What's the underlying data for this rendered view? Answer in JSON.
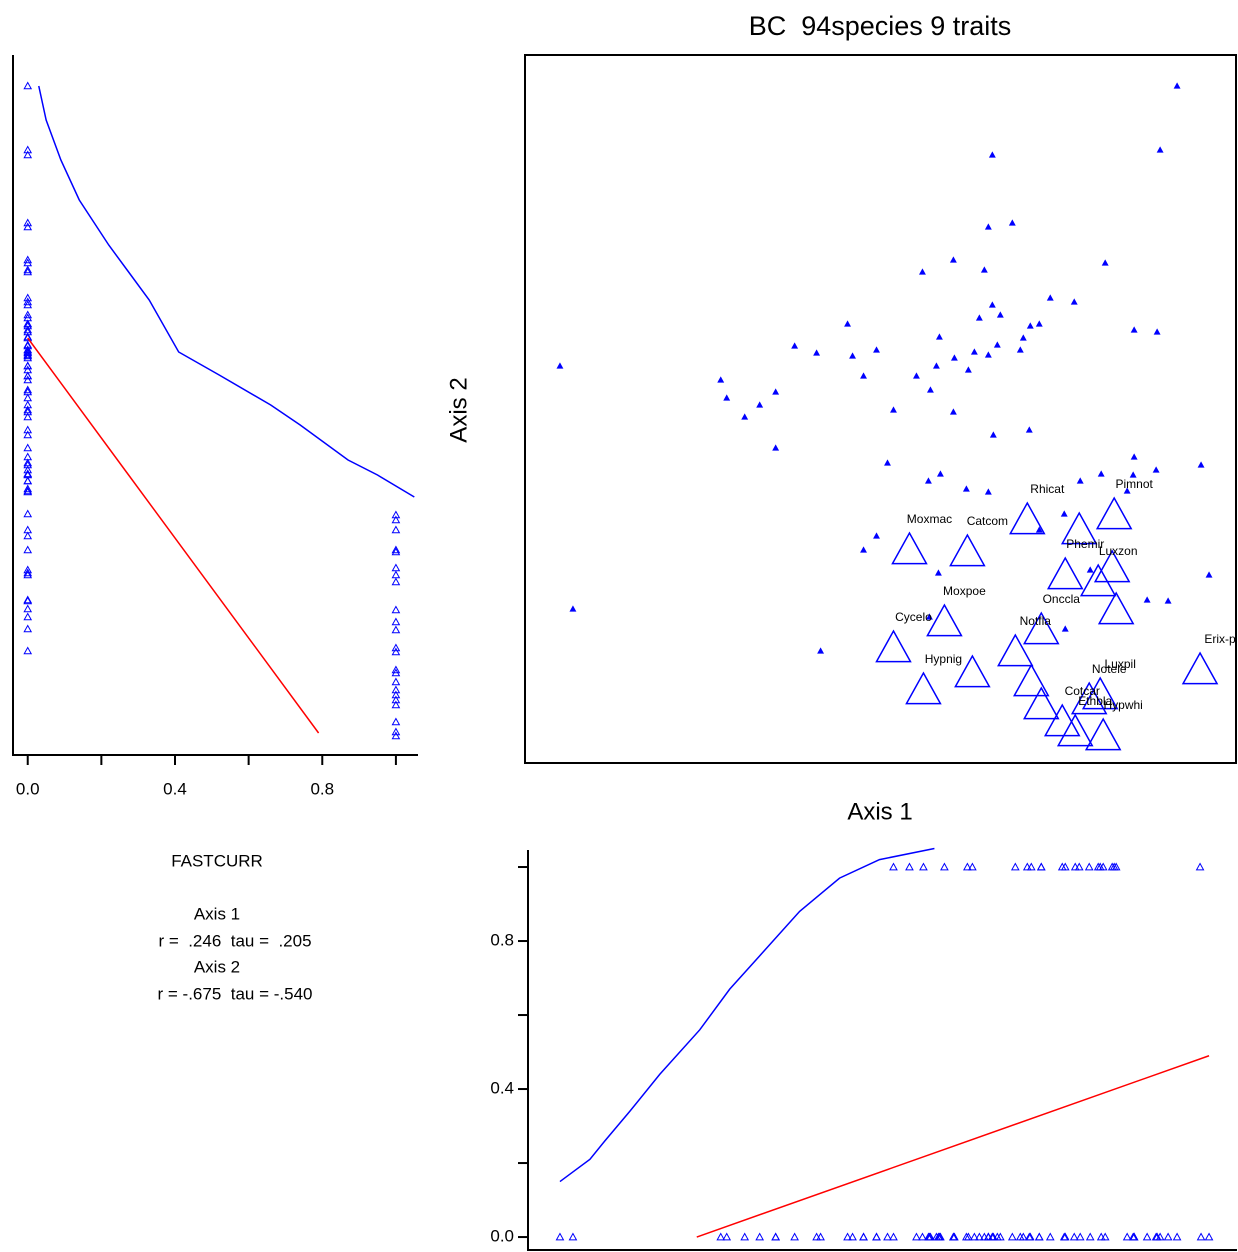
{
  "chart_data": [
    {
      "type": "ordination",
      "title": "BC  94species 9 traits",
      "x_label": "Axis 1",
      "y_label": "Axis 2",
      "xlim": [
        0,
        713
      ],
      "ylim": [
        0,
        708
      ],
      "color": "#0000ff",
      "points": {
        "labels": [
          null,
          null,
          null,
          null,
          null,
          null,
          null,
          null,
          null,
          null,
          null,
          null,
          null,
          null,
          null,
          null,
          null,
          null,
          null,
          null,
          null,
          null,
          null,
          null,
          null,
          null,
          null,
          null,
          null,
          null,
          null,
          null,
          null,
          null,
          null,
          null,
          null,
          null,
          null,
          null,
          null,
          null,
          null,
          null,
          null,
          null,
          null,
          null,
          null,
          null,
          null,
          null,
          null,
          null,
          null,
          null,
          null,
          null,
          null,
          null,
          null,
          null,
          null,
          null,
          null,
          null,
          null,
          null,
          null,
          null,
          null,
          "Moxmac",
          "Catcom",
          "Rhicat",
          "Pimnot",
          null,
          "Phemir",
          null,
          "Luxzon",
          null,
          "Moxpoe",
          "Cycelo",
          "Onccla",
          "Notfla",
          null,
          "Hypnig",
          null,
          "Notele",
          "Luxpil",
          "Cotcar",
          "Ethbla",
          "Hypwhi",
          "Erix-p",
          null
        ],
        "axis1": [
          653,
          636,
          468,
          488,
          464,
          429,
          460,
          398,
          581,
          468,
          526,
          550,
          455,
          476,
          323,
          506,
          610,
          633,
          515,
          415,
          270,
          292,
          328,
          352,
          499,
          496,
          473,
          450,
          430,
          464,
          339,
          196,
          392,
          412,
          444,
          202,
          251,
          235,
          220,
          406,
          369,
          429,
          251,
          469,
          505,
          363,
          610,
          632,
          677,
          609,
          404,
          416,
          442,
          464,
          556,
          577,
          603,
          540,
          515,
          352,
          339,
          414,
          566,
          541,
          623,
          644,
          685,
          405,
          296,
          35,
          48,
          385,
          443,
          503,
          590,
          555,
          541,
          588,
          574,
          592,
          420,
          369,
          517,
          491,
          507,
          399,
          448,
          565,
          576,
          538,
          551,
          579,
          676,
          517
        ],
        "axis2": [
          677,
          613,
          608,
          540,
          536,
          503,
          493,
          491,
          500,
          458,
          465,
          461,
          445,
          448,
          439,
          437,
          433,
          431,
          439,
          426,
          417,
          410,
          407,
          413,
          425,
          413,
          418,
          411,
          405,
          408,
          387,
          383,
          387,
          397,
          393,
          365,
          371,
          358,
          346,
          373,
          353,
          351,
          315,
          328,
          333,
          300,
          306,
          293,
          298,
          288,
          282,
          289,
          274,
          271,
          282,
          289,
          272,
          249,
          233,
          227,
          213,
          190,
          193,
          134,
          163,
          162,
          188,
          146,
          112,
          397,
          154,
          213,
          211,
          243,
          248,
          233,
          188,
          195,
          181,
          153,
          141,
          115,
          133,
          111,
          81,
          73,
          90,
          63,
          68,
          41,
          31,
          27,
          93,
          58
        ],
        "fastcurr": [
          0,
          0,
          0,
          0,
          0,
          0,
          0,
          0,
          0,
          0,
          0,
          0,
          0,
          0,
          0,
          0,
          0,
          0,
          0,
          0,
          0,
          0,
          0,
          0,
          0,
          0,
          0,
          0,
          0,
          0,
          0,
          0,
          0,
          0,
          0,
          0,
          0,
          0,
          0,
          0,
          0,
          0,
          0,
          0,
          0,
          0,
          0,
          0,
          0,
          0,
          0,
          0,
          0,
          0,
          0,
          0,
          0,
          0,
          0,
          0,
          0,
          0,
          0,
          0,
          0,
          0,
          0,
          0,
          0,
          0,
          0,
          1,
          1,
          1,
          1,
          1,
          1,
          1,
          1,
          1,
          1,
          1,
          1,
          1,
          1,
          1,
          1,
          1,
          1,
          1,
          1,
          1,
          1,
          1
        ]
      }
    },
    {
      "type": "overlay-y",
      "xlim": [
        -0.04,
        1.06
      ],
      "ylim": [
        8,
        708
      ],
      "color": "#0000ff",
      "xticks": [
        {
          "value": 0,
          "label": "0.0"
        },
        {
          "value": 0.4,
          "label": "0.4"
        },
        {
          "value": 0.8,
          "label": "0.8"
        }
      ],
      "xticks_minor": [
        0.2,
        0.6,
        1.0
      ],
      "series": [
        {
          "color": "#0000ff",
          "x": [
            0.03,
            0.05,
            0.09,
            0.14,
            0.22,
            0.33,
            0.41,
            0.52,
            0.66,
            0.74,
            0.87,
            0.95,
            1.05
          ],
          "values": [
            677,
            643,
            603,
            563,
            518,
            463,
            411,
            388,
            358,
            338,
            303,
            288,
            266
          ]
        },
        {
          "color": "#ff0000",
          "x": [
            0,
            0.79
          ],
          "values": [
            425,
            30
          ]
        }
      ]
    },
    {
      "type": "overlay-x",
      "xlim": [
        3,
        713
      ],
      "ylim": [
        -0.035,
        1.046
      ],
      "color": "#0000ff",
      "yticks": [
        {
          "value": 0,
          "label": "0.0"
        },
        {
          "value": 0.4,
          "label": "0.4"
        },
        {
          "value": 0.8,
          "label": "0.8"
        }
      ],
      "yticks_minor": [
        0.2,
        0.6,
        1.0
      ],
      "series": [
        {
          "color": "#0000ff",
          "x": [
            35,
            50,
            65,
            80,
            105,
            135,
            175,
            205,
            235,
            275,
            315,
            355,
            410
          ],
          "values": [
            0.15,
            0.18,
            0.21,
            0.26,
            0.34,
            0.44,
            0.56,
            0.67,
            0.76,
            0.88,
            0.97,
            1.02,
            1.05
          ]
        },
        {
          "color": "#ff0000",
          "x": [
            172,
            685
          ],
          "values": [
            0,
            0.49
          ]
        }
      ]
    }
  ],
  "stats": {
    "variable": "FASTCURR",
    "lines": [
      "Axis 1",
      "r =  .246  tau =  .205",
      "Axis 2",
      "r = -.675  tau = -.540"
    ]
  }
}
